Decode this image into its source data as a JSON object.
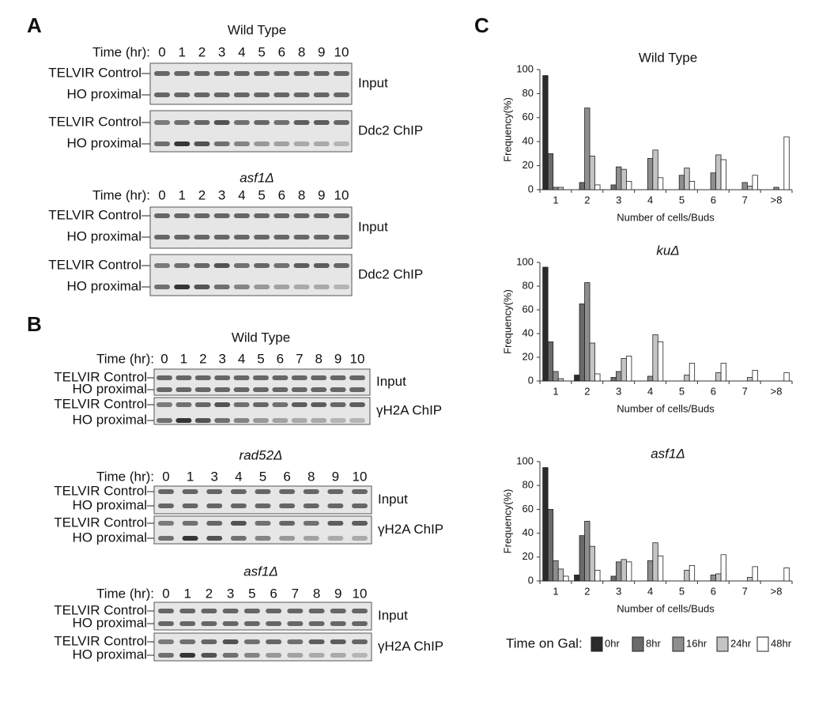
{
  "panel_a": {
    "label": "A",
    "gels": [
      {
        "title": "Wild Type",
        "time_label": "Time (hr):",
        "times": [
          "0",
          "1",
          "2",
          "3",
          "4",
          "5",
          "6",
          "8",
          "9",
          "10"
        ],
        "blots": [
          {
            "label": "Input",
            "rows": [
              "TELVIR Control",
              "HO proximal"
            ]
          },
          {
            "label": "Ddc2 ChIP",
            "rows": [
              "TELVIR Control",
              "HO proximal"
            ]
          }
        ]
      },
      {
        "title": "asf1Δ",
        "time_label": "Time (hr):",
        "times": [
          "0",
          "1",
          "2",
          "3",
          "4",
          "5",
          "6",
          "8",
          "9",
          "10"
        ],
        "blots": [
          {
            "label": "Input",
            "rows": [
              "TELVIR Control",
              "HO proximal"
            ]
          },
          {
            "label": "Ddc2 ChIP",
            "rows": [
              "TELVIR Control",
              "HO proximal"
            ]
          }
        ]
      }
    ]
  },
  "panel_b": {
    "label": "B",
    "gels": [
      {
        "title": "Wild Type",
        "time_label": "Time (hr):",
        "times": [
          "0",
          "1",
          "2",
          "3",
          "4",
          "5",
          "6",
          "7",
          "8",
          "9",
          "10"
        ],
        "blots": [
          {
            "label": "Input",
            "rows": [
              "TELVIR Control",
              "HO proximal"
            ]
          },
          {
            "label": "γH2A ChIP",
            "rows": [
              "TELVIR Control",
              "HO proximal"
            ]
          }
        ]
      },
      {
        "title": "rad52Δ",
        "time_label": "Time (hr):",
        "times": [
          "0",
          "1",
          "3",
          "4",
          "5",
          "6",
          "8",
          "9",
          "10"
        ],
        "blots": [
          {
            "label": "Input",
            "rows": [
              "TELVIR Control",
              "HO proximal"
            ]
          },
          {
            "label": "γH2A ChIP",
            "rows": [
              "TELVIR Control",
              "HO proximal"
            ]
          }
        ]
      },
      {
        "title": "asf1Δ",
        "time_label": "Time (hr):",
        "times": [
          "0",
          "1",
          "2",
          "3",
          "5",
          "6",
          "7",
          "8",
          "9",
          "10"
        ],
        "blots": [
          {
            "label": "Input",
            "rows": [
              "TELVIR Control",
              "HO proximal"
            ]
          },
          {
            "label": "γH2A ChIP",
            "rows": [
              "TELVIR Control",
              "HO proximal"
            ]
          }
        ]
      }
    ]
  },
  "panel_c": {
    "label": "C"
  },
  "legend": {
    "title": "Time on Gal:",
    "items": [
      {
        "name": "0hr",
        "color": "#2b2b2b"
      },
      {
        "name": "8hr",
        "color": "#6a6a6a"
      },
      {
        "name": "16hr",
        "color": "#8e8e8e"
      },
      {
        "name": "24hr",
        "color": "#c4c4c4"
      },
      {
        "name": "48hr",
        "color": "#ffffff"
      }
    ]
  },
  "chart_data": [
    {
      "type": "bar",
      "title": "Wild Type",
      "x_label": "Number of cells/Buds",
      "y_label": "Frequency(%)",
      "categories": [
        "1",
        "2",
        "3",
        "4",
        "5",
        "6",
        "7",
        ">8"
      ],
      "ylim": [
        0,
        100
      ],
      "yticks": [
        0,
        20,
        40,
        60,
        80,
        100
      ],
      "series": [
        {
          "values": [
            95,
            0,
            0,
            0,
            0,
            0,
            0,
            0
          ]
        },
        {
          "values": [
            30,
            6,
            4,
            0,
            0,
            0,
            0,
            0
          ]
        },
        {
          "values": [
            2,
            68,
            19,
            26,
            12,
            14,
            6,
            2
          ]
        },
        {
          "values": [
            2,
            28,
            17,
            33,
            18,
            29,
            3,
            0
          ]
        },
        {
          "values": [
            0,
            4,
            7,
            10,
            7,
            25,
            12,
            44
          ]
        }
      ]
    },
    {
      "type": "bar",
      "title": "kuΔ",
      "x_label": "Number of cells/Buds",
      "y_label": "Frequency(%)",
      "categories": [
        "1",
        "2",
        "3",
        "4",
        "5",
        "6",
        "7",
        ">8"
      ],
      "ylim": [
        0,
        100
      ],
      "yticks": [
        0,
        20,
        40,
        60,
        80,
        100
      ],
      "series": [
        {
          "values": [
            96,
            5,
            0,
            0,
            0,
            0,
            0,
            0
          ]
        },
        {
          "values": [
            33,
            65,
            3,
            0,
            0,
            0,
            0,
            0
          ]
        },
        {
          "values": [
            8,
            83,
            8,
            4,
            0,
            0,
            0,
            0
          ]
        },
        {
          "values": [
            2,
            32,
            19,
            39,
            5,
            7,
            3,
            0
          ]
        },
        {
          "values": [
            0,
            6,
            21,
            33,
            15,
            15,
            9,
            7
          ]
        }
      ]
    },
    {
      "type": "bar",
      "title": "asf1Δ",
      "x_label": "Number of cells/Buds",
      "y_label": "Frequency(%)",
      "categories": [
        "1",
        "2",
        "3",
        "4",
        "5",
        "6",
        "7",
        ">8"
      ],
      "ylim": [
        0,
        100
      ],
      "yticks": [
        0,
        20,
        40,
        60,
        80,
        100
      ],
      "series": [
        {
          "values": [
            95,
            5,
            0,
            0,
            0,
            0,
            0,
            0
          ]
        },
        {
          "values": [
            60,
            38,
            4,
            0,
            0,
            0,
            0,
            0
          ]
        },
        {
          "values": [
            17,
            50,
            16,
            17,
            0,
            5,
            0,
            0
          ]
        },
        {
          "values": [
            10,
            29,
            18,
            32,
            9,
            6,
            3,
            0
          ]
        },
        {
          "values": [
            4,
            9,
            16,
            21,
            13,
            22,
            12,
            11
          ]
        }
      ]
    }
  ]
}
